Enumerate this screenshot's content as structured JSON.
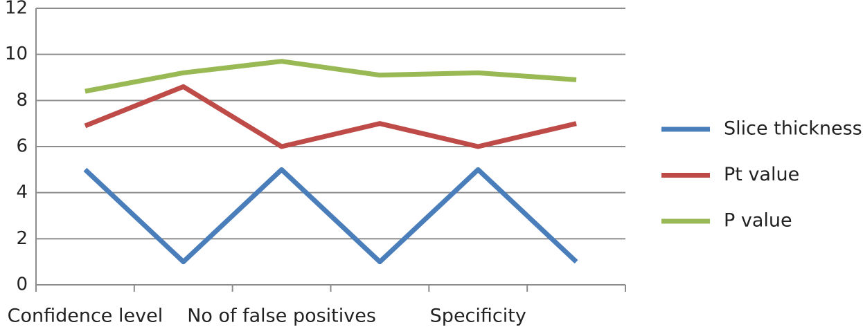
{
  "chart_data": {
    "type": "line",
    "categories": [
      "Confidence level",
      null,
      "No of false positives",
      null,
      "Specificity",
      null
    ],
    "series": [
      {
        "name": "Slice thickness",
        "color": "#4a7ebb",
        "values": [
          5,
          1,
          5,
          1,
          5,
          1
        ]
      },
      {
        "name": "Pt value",
        "color": "#be4b48",
        "values": [
          6.9,
          8.6,
          6,
          7,
          6,
          7
        ]
      },
      {
        "name": "P value",
        "color": "#98b954",
        "values": [
          8.4,
          9.2,
          9.7,
          9.1,
          9.2,
          8.9
        ]
      }
    ],
    "ylim": [
      0,
      12
    ],
    "yticks": [
      0,
      2,
      4,
      6,
      8,
      10,
      12
    ],
    "grid": true,
    "legend": "right"
  }
}
